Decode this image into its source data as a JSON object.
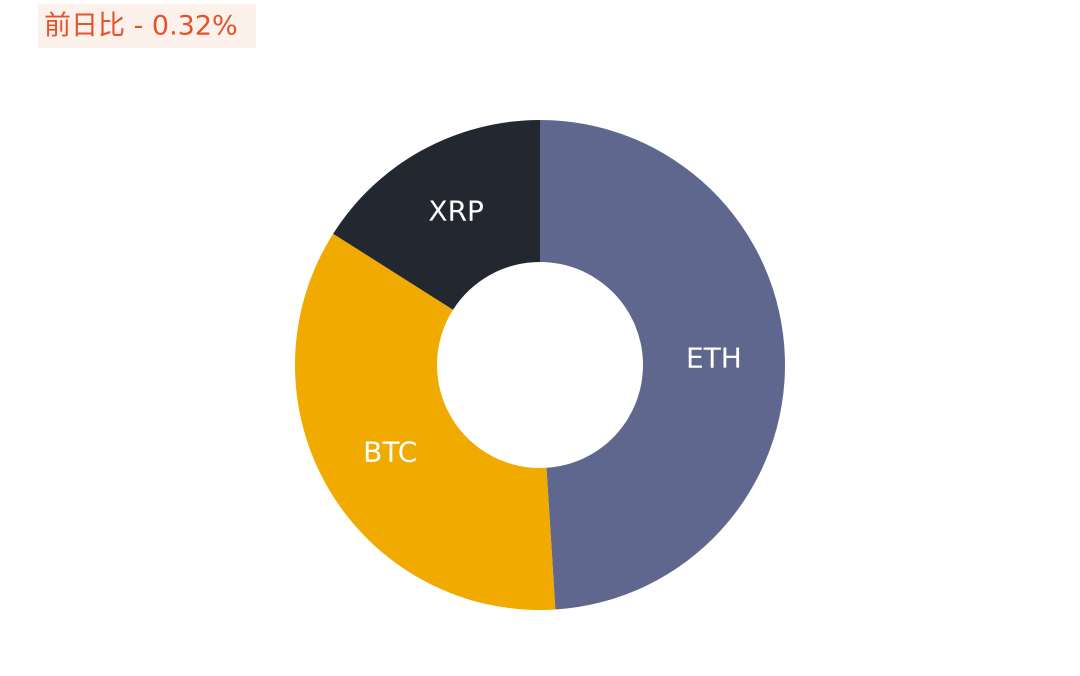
{
  "chart_data": {
    "type": "donut",
    "title": "前日比 - 0.32%",
    "categories": [
      "ETH",
      "BTC",
      "XRP"
    ],
    "values": [
      49,
      35,
      16
    ],
    "colors": [
      "#60678e",
      "#f0aa00",
      "#23272f"
    ]
  }
}
